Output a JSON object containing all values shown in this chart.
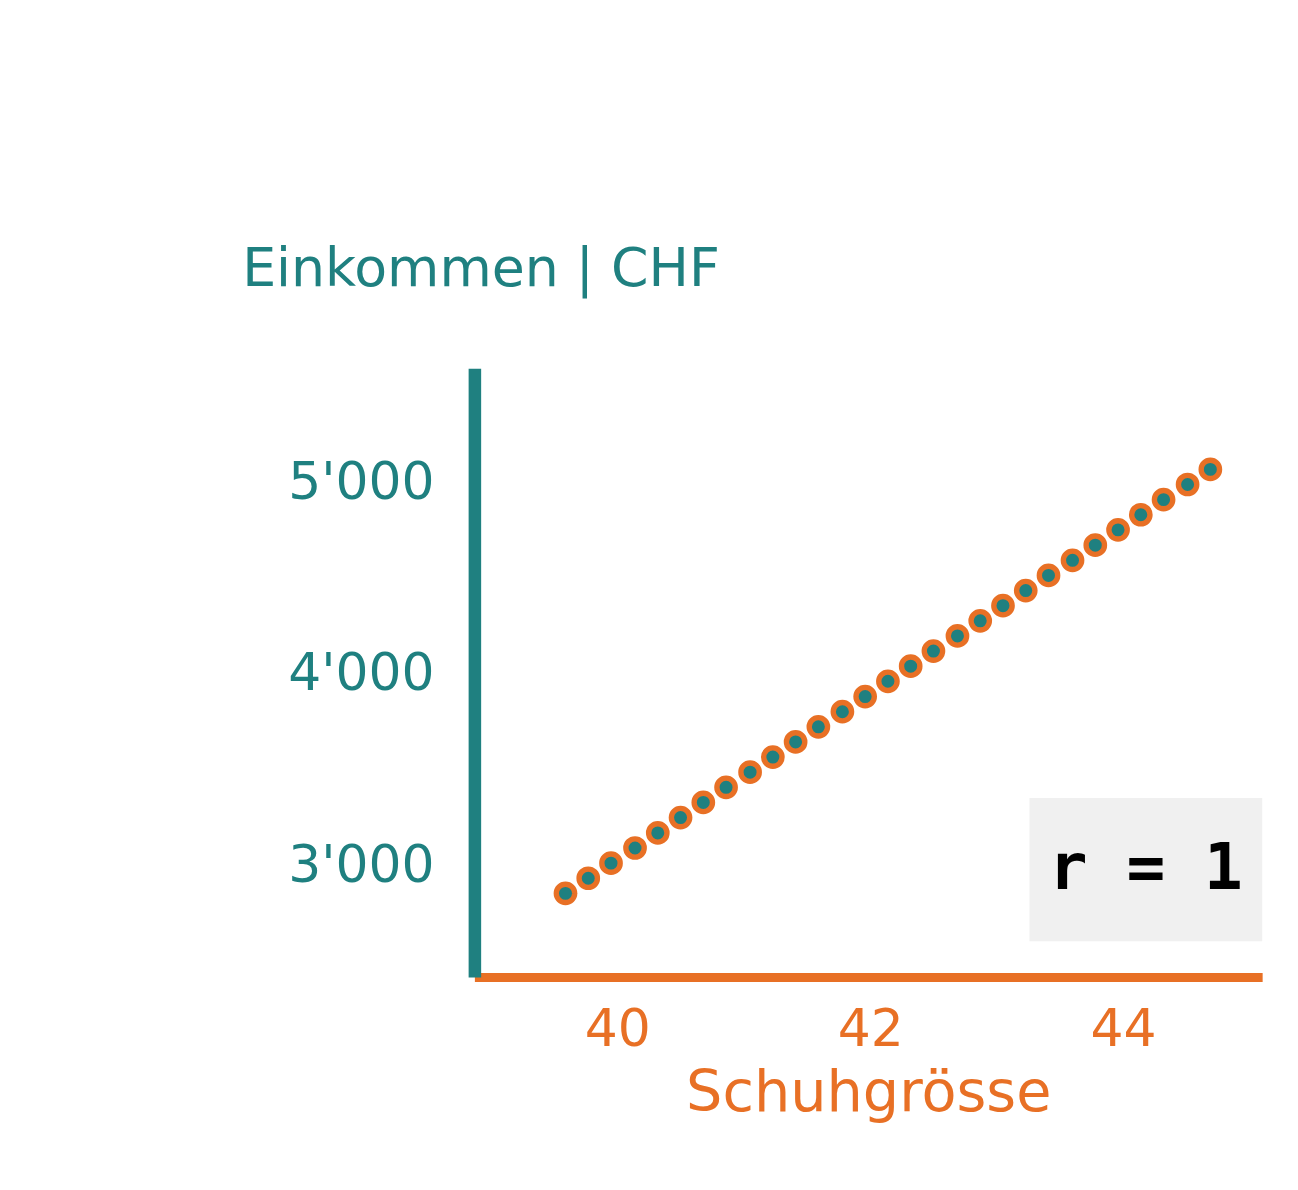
{
  "chart_data": {
    "type": "scatter",
    "ylabel": "Einkommen | CHF",
    "xlabel": "Schuhgrösse",
    "x": [
      39.59,
      39.77,
      39.95,
      40.14,
      40.32,
      40.5,
      40.68,
      40.86,
      41.05,
      41.23,
      41.41,
      41.59,
      41.78,
      41.96,
      42.14,
      42.32,
      42.5,
      42.69,
      42.87,
      43.05,
      43.23,
      43.41,
      43.6,
      43.78,
      43.96,
      44.14,
      44.32,
      44.51,
      44.69
    ],
    "series": [
      {
        "color": "#1f8080",
        "values": [
          2857,
          2936,
          3015,
          3094,
          3173,
          3253,
          3332,
          3411,
          3490,
          3569,
          3648,
          3727,
          3806,
          3885,
          3965,
          4044,
          4123,
          4202,
          4281,
          4360,
          4439,
          4518,
          4597,
          4676,
          4756,
          4835,
          4914,
          4993,
          5072
        ]
      }
    ],
    "xlim": [
      38.87,
      45.1
    ],
    "xticks": [
      40,
      42,
      44
    ],
    "ylim": [
      2420,
      5600
    ],
    "yticks": [
      {
        "value": 3000,
        "label": "3'000"
      },
      {
        "value": 4000,
        "label": "4'000"
      },
      {
        "value": 5000,
        "label": "5'000"
      }
    ],
    "annotations": [
      "r = 1"
    ],
    "grid": false,
    "marker": "circle"
  }
}
